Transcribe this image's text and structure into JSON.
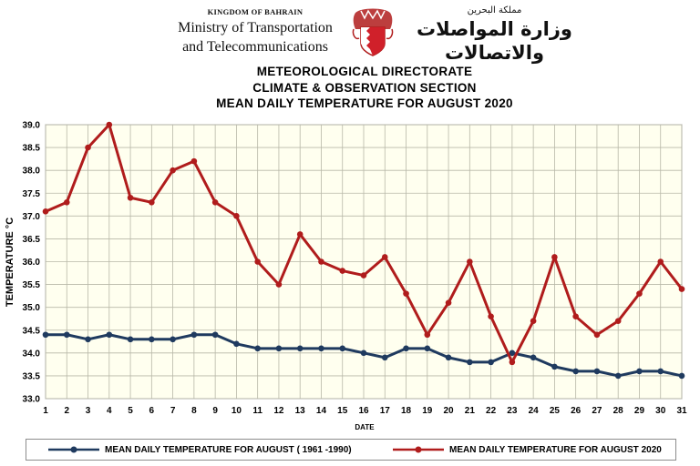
{
  "header": {
    "kingdom": "KINGDOM OF BAHRAIN",
    "ministry_line1": "Ministry of Transportation",
    "ministry_line2": "and Telecommunications",
    "arabic_line1": "مملكة البحرين",
    "arabic_line2": "وزارة المواصلات والاتصالات",
    "emblem_icon": "bahrain-emblem-icon"
  },
  "titles": {
    "line1": "METEOROLOGICAL DIRECTORATE",
    "line2": "CLIMATE & OBSERVATION SECTION",
    "line3": "MEAN DAILY TEMPERATURE FOR AUGUST 2020"
  },
  "chart_data": {
    "type": "line",
    "title": "MEAN DAILY TEMPERATURE FOR AUGUST 2020",
    "xlabel": "DATE",
    "ylabel": "TEMPERATURE °C",
    "x": [
      1,
      2,
      3,
      4,
      5,
      6,
      7,
      8,
      9,
      10,
      11,
      12,
      13,
      14,
      15,
      16,
      17,
      18,
      19,
      20,
      21,
      22,
      23,
      24,
      25,
      26,
      27,
      28,
      29,
      30,
      31
    ],
    "xlim": [
      1,
      31
    ],
    "ylim": [
      33.0,
      39.0
    ],
    "ytick_step": 0.5,
    "grid": true,
    "legend_position": "bottom",
    "series": [
      {
        "name": "MEAN DAILY TEMPERATURE FOR AUGUST ( 1961 -1990)",
        "color": "#1f3a5f",
        "values": [
          34.4,
          34.4,
          34.3,
          34.4,
          34.3,
          34.3,
          34.3,
          34.4,
          34.4,
          34.2,
          34.1,
          34.1,
          34.1,
          34.1,
          34.1,
          34.0,
          33.9,
          34.1,
          34.1,
          33.9,
          33.8,
          33.8,
          34.0,
          33.9,
          33.7,
          33.6,
          33.6,
          33.5,
          33.6,
          33.6,
          33.5
        ]
      },
      {
        "name": "MEAN DAILY TEMPERATURE FOR AUGUST 2020",
        "color": "#b01c1c",
        "values": [
          37.1,
          37.3,
          38.5,
          39.0,
          37.4,
          37.3,
          38.0,
          38.2,
          37.3,
          37.0,
          36.0,
          35.5,
          36.6,
          36.0,
          35.8,
          35.7,
          36.1,
          35.3,
          34.4,
          35.1,
          36.0,
          34.8,
          33.8,
          34.7,
          36.1,
          34.8,
          34.4,
          34.7,
          35.3,
          36.0,
          35.4
        ]
      }
    ]
  }
}
